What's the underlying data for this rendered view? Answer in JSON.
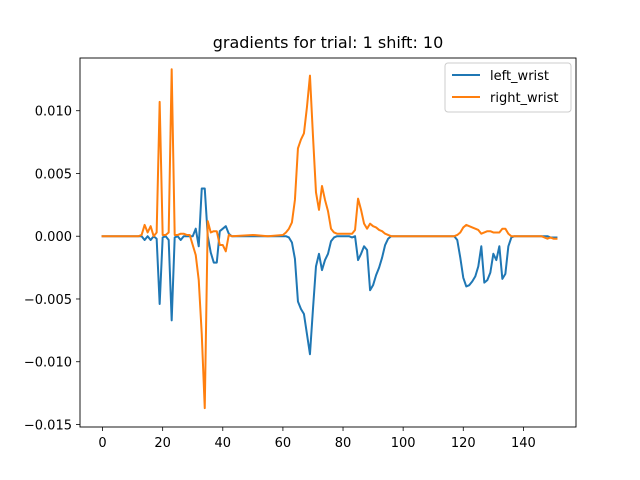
{
  "chart_data": {
    "type": "line",
    "title": "gradients for trial: 1 shift: 10",
    "xlabel": "",
    "ylabel": "",
    "xlim": [
      -7.5,
      157.5
    ],
    "ylim": [
      -0.0152,
      0.0142
    ],
    "xticks": [
      0,
      20,
      40,
      60,
      80,
      100,
      120,
      140
    ],
    "xtick_labels": [
      "0",
      "20",
      "40",
      "60",
      "80",
      "100",
      "120",
      "140"
    ],
    "yticks": [
      -0.015,
      -0.01,
      -0.005,
      0.0,
      0.005,
      0.01
    ],
    "ytick_labels": [
      "−0.015",
      "−0.010",
      "−0.005",
      "0.000",
      "0.005",
      "0.010"
    ],
    "grid": false,
    "legend_position": "upper right",
    "series": [
      {
        "name": "left_wrist",
        "color": "#1f77b4",
        "points": [
          [
            0,
            0
          ],
          [
            12,
            0
          ],
          [
            13,
            0
          ],
          [
            14,
            -0.0003
          ],
          [
            15,
            0
          ],
          [
            16,
            -0.0003
          ],
          [
            17,
            0
          ],
          [
            18,
            -0.0002
          ],
          [
            19,
            -0.0054
          ],
          [
            20,
            -0.0001
          ],
          [
            21,
            0
          ],
          [
            22,
            -0.0003
          ],
          [
            23,
            -0.0067
          ],
          [
            24,
            -0.0001
          ],
          [
            25,
            0
          ],
          [
            26,
            -0.0003
          ],
          [
            27,
            0
          ],
          [
            28,
            0
          ],
          [
            29,
            0
          ],
          [
            30,
            0
          ],
          [
            31,
            0.0006
          ],
          [
            32,
            -0.0008
          ],
          [
            33,
            0.0038
          ],
          [
            34,
            0.0038
          ],
          [
            35,
            0.0
          ],
          [
            36,
            -0.0013
          ],
          [
            37,
            -0.0021
          ],
          [
            38,
            -0.0021
          ],
          [
            39,
            0.0004
          ],
          [
            40,
            0.0006
          ],
          [
            41,
            0.0008
          ],
          [
            42,
            0.0002
          ],
          [
            43,
            0
          ],
          [
            50,
            0
          ],
          [
            60,
            0
          ],
          [
            61,
            0
          ],
          [
            62,
            -0.0001
          ],
          [
            63,
            -0.0005
          ],
          [
            64,
            -0.0018
          ],
          [
            65,
            -0.0052
          ],
          [
            66,
            -0.0058
          ],
          [
            67,
            -0.0062
          ],
          [
            68,
            -0.0078
          ],
          [
            69,
            -0.0094
          ],
          [
            70,
            -0.0058
          ],
          [
            71,
            -0.0024
          ],
          [
            72,
            -0.0014
          ],
          [
            73,
            -0.0027
          ],
          [
            74,
            -0.0019
          ],
          [
            75,
            -0.0014
          ],
          [
            76,
            -0.0004
          ],
          [
            77,
            -0.0001
          ],
          [
            78,
            0
          ],
          [
            80,
            0
          ],
          [
            82,
            0
          ],
          [
            83,
            -0.0001
          ],
          [
            84,
            0
          ],
          [
            85,
            -0.0019
          ],
          [
            86,
            -0.0014
          ],
          [
            87,
            -0.0008
          ],
          [
            88,
            -0.0011
          ],
          [
            89,
            -0.0043
          ],
          [
            90,
            -0.0039
          ],
          [
            91,
            -0.0031
          ],
          [
            92,
            -0.0025
          ],
          [
            93,
            -0.0017
          ],
          [
            94,
            -0.0007
          ],
          [
            95,
            -0.0002
          ],
          [
            96,
            0
          ],
          [
            100,
            0
          ],
          [
            110,
            0
          ],
          [
            117,
            0
          ],
          [
            118,
            -0.0003
          ],
          [
            119,
            -0.0017
          ],
          [
            120,
            -0.0033
          ],
          [
            121,
            -0.004
          ],
          [
            122,
            -0.0039
          ],
          [
            123,
            -0.0036
          ],
          [
            124,
            -0.0032
          ],
          [
            125,
            -0.0024
          ],
          [
            126,
            -0.0008
          ],
          [
            127,
            -0.0037
          ],
          [
            128,
            -0.0035
          ],
          [
            129,
            -0.0029
          ],
          [
            130,
            -0.0014
          ],
          [
            131,
            -0.0019
          ],
          [
            132,
            -0.0008
          ],
          [
            133,
            -0.0034
          ],
          [
            134,
            -0.003
          ],
          [
            135,
            -0.0008
          ],
          [
            136,
            -0.0001
          ],
          [
            137,
            0
          ],
          [
            145,
            0
          ],
          [
            148,
            0
          ],
          [
            149,
            -0.0001
          ],
          [
            150,
            -0.0001
          ],
          [
            151,
            -0.0001
          ]
        ]
      },
      {
        "name": "right_wrist",
        "color": "#ff7f0e",
        "points": [
          [
            0,
            0
          ],
          [
            12,
            0
          ],
          [
            13,
            0.0001
          ],
          [
            14,
            0.0009
          ],
          [
            15,
            0.0003
          ],
          [
            16,
            0.0008
          ],
          [
            17,
            0
          ],
          [
            18,
            0.0003
          ],
          [
            19,
            0.0107
          ],
          [
            20,
            0.0001
          ],
          [
            21,
            0.0001
          ],
          [
            22,
            0.0003
          ],
          [
            23,
            0.0133
          ],
          [
            24,
            0.0001
          ],
          [
            25,
            0.0001
          ],
          [
            26,
            0.0002
          ],
          [
            27,
            0.0002
          ],
          [
            28,
            0.0001
          ],
          [
            29,
            0.0001
          ],
          [
            30,
            -0.0007
          ],
          [
            31,
            -0.0015
          ],
          [
            32,
            -0.0035
          ],
          [
            33,
            -0.0078
          ],
          [
            34,
            -0.0137
          ],
          [
            35,
            0.0012
          ],
          [
            36,
            0.0003
          ],
          [
            37,
            0.0004
          ],
          [
            38,
            0.0004
          ],
          [
            39,
            -0.0007
          ],
          [
            40,
            -0.0007
          ],
          [
            41,
            -0.0012
          ],
          [
            42,
            0.0001
          ],
          [
            43,
            0
          ],
          [
            50,
            0.0001
          ],
          [
            55,
            0
          ],
          [
            60,
            0.0001
          ],
          [
            61,
            0.0003
          ],
          [
            62,
            0.0006
          ],
          [
            63,
            0.0011
          ],
          [
            64,
            0.0029
          ],
          [
            65,
            0.007
          ],
          [
            66,
            0.0077
          ],
          [
            67,
            0.0082
          ],
          [
            68,
            0.0103
          ],
          [
            69,
            0.0128
          ],
          [
            70,
            0.008
          ],
          [
            71,
            0.0035
          ],
          [
            72,
            0.0021
          ],
          [
            73,
            0.004
          ],
          [
            74,
            0.0029
          ],
          [
            75,
            0.002
          ],
          [
            76,
            0.0006
          ],
          [
            77,
            0.0003
          ],
          [
            78,
            0.0002
          ],
          [
            80,
            0.0002
          ],
          [
            83,
            0.0002
          ],
          [
            84,
            0.0005
          ],
          [
            85,
            0.003
          ],
          [
            86,
            0.0021
          ],
          [
            87,
            0.001
          ],
          [
            88,
            0.0006
          ],
          [
            89,
            0.001
          ],
          [
            90,
            0.0008
          ],
          [
            91,
            0.0007
          ],
          [
            92,
            0.0005
          ],
          [
            93,
            0.0004
          ],
          [
            94,
            0.0002
          ],
          [
            95,
            0.0001
          ],
          [
            96,
            0
          ],
          [
            100,
            0
          ],
          [
            110,
            0
          ],
          [
            117,
            0
          ],
          [
            118,
            0.0001
          ],
          [
            119,
            0.0003
          ],
          [
            120,
            0.0007
          ],
          [
            121,
            0.0009
          ],
          [
            122,
            0.0008
          ],
          [
            123,
            0.0007
          ],
          [
            124,
            0.0006
          ],
          [
            125,
            0.0005
          ],
          [
            126,
            0.0002
          ],
          [
            127,
            0.0003
          ],
          [
            128,
            0.0004
          ],
          [
            129,
            0.0004
          ],
          [
            130,
            0.0003
          ],
          [
            131,
            0.0003
          ],
          [
            132,
            0.0003
          ],
          [
            133,
            0.0006
          ],
          [
            134,
            0.0006
          ],
          [
            135,
            0.0002
          ],
          [
            136,
            0
          ],
          [
            140,
            0
          ],
          [
            146,
            0
          ],
          [
            147,
            -0.0001
          ],
          [
            148,
            -0.0002
          ],
          [
            149,
            -0.0001
          ],
          [
            150,
            -0.0002
          ],
          [
            151,
            -0.0002
          ]
        ]
      }
    ]
  }
}
